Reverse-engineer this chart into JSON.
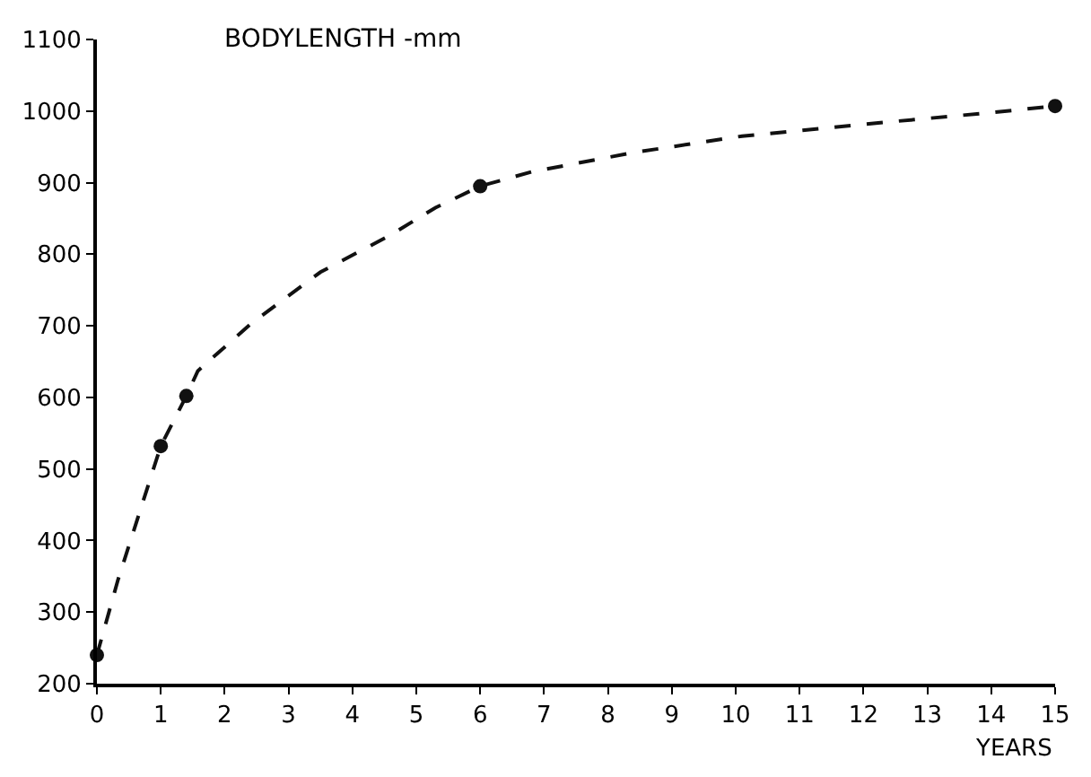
{
  "chart_data": {
    "type": "line",
    "title": "BODYLENGTH -mm",
    "xlabel": "YEARS",
    "xlim": [
      0,
      15
    ],
    "ylim": [
      200,
      1100
    ],
    "xticks": [
      0,
      1,
      2,
      3,
      4,
      5,
      6,
      7,
      8,
      9,
      10,
      11,
      12,
      13,
      14,
      15
    ],
    "yticks": [
      200,
      300,
      400,
      500,
      600,
      700,
      800,
      900,
      1000,
      1100
    ],
    "series": [
      {
        "color": "#111111",
        "line_style": "dashed",
        "marker": "none",
        "x": [
          0,
          0.33,
          1,
          1.4,
          1.58,
          2.4,
          3.5,
          4.6,
          5.3,
          6,
          6.8,
          8.4,
          10.1,
          12.05,
          13.9,
          15
        ],
        "values": [
          240,
          345,
          532,
          602,
          637,
          702,
          775,
          827,
          865,
          895,
          915,
          942,
          965,
          982,
          997,
          1007
        ]
      },
      {
        "type": "scatter",
        "color": "#111111",
        "marker": "circle",
        "x": [
          0,
          1,
          1.4,
          6,
          15
        ],
        "values": [
          240,
          532,
          602,
          895,
          1007
        ]
      }
    ]
  }
}
